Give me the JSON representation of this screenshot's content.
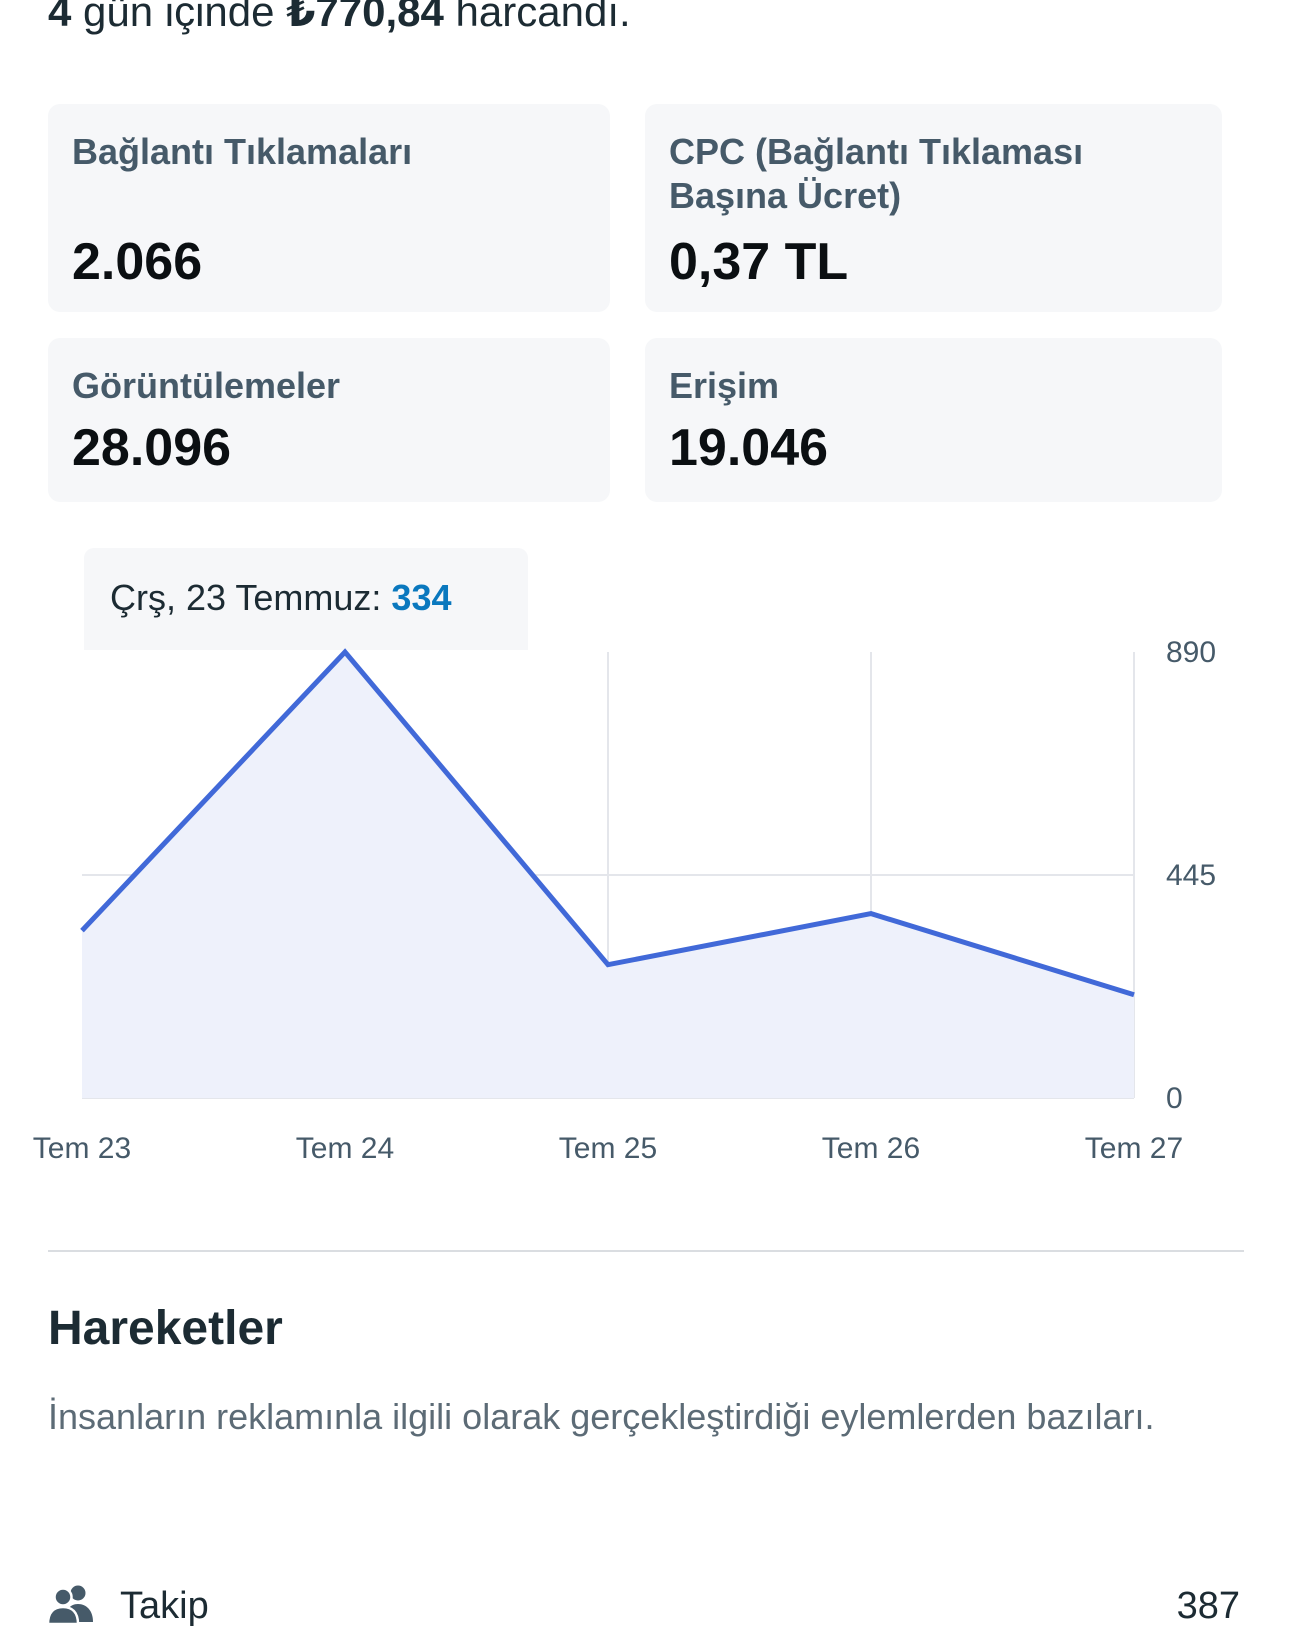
{
  "summary": {
    "days": "4",
    "text_mid": " gün içinde ",
    "amount": "₺770,84",
    "text_end": " harcandı."
  },
  "metrics": [
    {
      "label": "Bağlantı Tıklamaları",
      "value": "2.066"
    },
    {
      "label": "CPC (Bağlantı Tıklaması Başına Ücret)",
      "value": "0,37 TL"
    },
    {
      "label": "Görüntülemeler",
      "value": "28.096"
    },
    {
      "label": "Erişim",
      "value": "19.046"
    }
  ],
  "tooltip": {
    "label": "Çrş, 23 Temmuz: ",
    "value": "334"
  },
  "chart_data": {
    "type": "area",
    "categories": [
      "Tem 23",
      "Tem 24",
      "Tem 25",
      "Tem 26",
      "Tem 27"
    ],
    "series": [
      {
        "values": [
          334,
          890,
          266,
          368,
          206
        ]
      }
    ],
    "ylim": [
      0,
      890
    ],
    "yticks": [
      "890",
      "445",
      "0"
    ],
    "grid": true,
    "colors": {
      "line": "#4169d8",
      "fill": "#eef1fb",
      "grid": "#e4e6eb"
    }
  },
  "actions": {
    "title": "Hareketler",
    "description": "İnsanların reklamınla ilgili olarak gerçekleştirdiği eylemlerden bazıları.",
    "items": [
      {
        "icon": "people-icon",
        "label": "Takip",
        "count": "387"
      }
    ]
  }
}
